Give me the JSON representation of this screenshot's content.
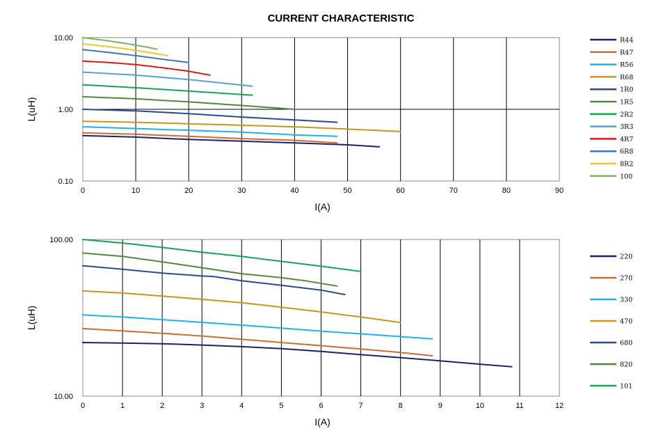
{
  "title": "CURRENT CHARACTERISTIC",
  "chart_data": [
    {
      "type": "line",
      "xlabel": "I(A)",
      "ylabel": "L(uH)",
      "xlim": [
        0,
        90
      ],
      "ylim": [
        0.1,
        10
      ],
      "yscale": "log",
      "xticks": [
        "0",
        "10",
        "20",
        "30",
        "40",
        "50",
        "60",
        "70",
        "80",
        "90"
      ],
      "yticks": [
        "0.10",
        "1.00",
        "10.00"
      ],
      "grid": true,
      "legend_position": "right",
      "series": [
        {
          "name": "R44",
          "color": "#1f1f6b",
          "x": [
            0,
            10,
            20,
            30,
            40,
            50,
            56
          ],
          "y": [
            0.43,
            0.41,
            0.38,
            0.36,
            0.34,
            0.32,
            0.3
          ]
        },
        {
          "name": "R47",
          "color": "#d06a34",
          "x": [
            0,
            10,
            20,
            30,
            40,
            48
          ],
          "y": [
            0.47,
            0.45,
            0.42,
            0.39,
            0.37,
            0.34
          ]
        },
        {
          "name": "R56",
          "color": "#1fb2e6",
          "x": [
            0,
            10,
            20,
            30,
            40,
            48
          ],
          "y": [
            0.57,
            0.54,
            0.51,
            0.48,
            0.44,
            0.42
          ]
        },
        {
          "name": "R68",
          "color": "#c9961a",
          "x": [
            0,
            10,
            20,
            30,
            40,
            50,
            60
          ],
          "y": [
            0.68,
            0.66,
            0.63,
            0.6,
            0.57,
            0.53,
            0.49
          ]
        },
        {
          "name": "1R0",
          "color": "#2b4a8c",
          "x": [
            0,
            10,
            20,
            30,
            40,
            48
          ],
          "y": [
            1.0,
            0.95,
            0.87,
            0.78,
            0.71,
            0.66
          ]
        },
        {
          "name": "1R5",
          "color": "#4f8a3c",
          "x": [
            0,
            10,
            20,
            30,
            40
          ],
          "y": [
            1.5,
            1.4,
            1.27,
            1.13,
            1.0
          ]
        },
        {
          "name": "2R2",
          "color": "#12a84f",
          "x": [
            0,
            10,
            20,
            32
          ],
          "y": [
            2.2,
            2.0,
            1.8,
            1.57
          ]
        },
        {
          "name": "3R3",
          "color": "#5aa0d8",
          "x": [
            0,
            10,
            20,
            32
          ],
          "y": [
            3.3,
            3.0,
            2.6,
            2.1
          ]
        },
        {
          "name": "4R7",
          "color": "#e0161b",
          "x": [
            0,
            5,
            10,
            15,
            20,
            24
          ],
          "y": [
            4.7,
            4.5,
            4.2,
            3.8,
            3.4,
            3.0
          ]
        },
        {
          "name": "6R8",
          "color": "#4472c4",
          "x": [
            0,
            5,
            10,
            15,
            20
          ],
          "y": [
            6.8,
            6.2,
            5.6,
            5.0,
            4.5
          ]
        },
        {
          "name": "8R2",
          "color": "#f5c32c",
          "x": [
            0,
            4,
            8,
            12,
            16
          ],
          "y": [
            8.2,
            7.6,
            7.0,
            6.3,
            5.6
          ]
        },
        {
          "name": "100",
          "color": "#7cb45a",
          "x": [
            0,
            4,
            8,
            12,
            14
          ],
          "y": [
            10.0,
            9.2,
            8.3,
            7.4,
            6.9
          ]
        }
      ]
    },
    {
      "type": "line",
      "xlabel": "I(A)",
      "ylabel": "L(uH)",
      "xlim": [
        0,
        12
      ],
      "ylim": [
        10,
        100
      ],
      "yscale": "log",
      "xticks": [
        "0",
        "1",
        "2",
        "3",
        "4",
        "5",
        "6",
        "7",
        "8",
        "9",
        "10",
        "11",
        "12"
      ],
      "yticks": [
        "10.00",
        "100.00"
      ],
      "grid": true,
      "legend_position": "right",
      "series": [
        {
          "name": "220",
          "color": "#1f1f6b",
          "x": [
            0,
            1,
            2,
            3,
            4,
            5,
            6,
            7,
            8,
            9,
            10,
            10.8
          ],
          "y": [
            22.0,
            21.8,
            21.6,
            21.2,
            20.7,
            20.1,
            19.3,
            18.4,
            17.6,
            16.8,
            16.0,
            15.4
          ]
        },
        {
          "name": "270",
          "color": "#d06a34",
          "x": [
            0,
            1,
            2,
            3,
            4,
            5,
            6,
            7,
            8,
            8.8
          ],
          "y": [
            27.0,
            26.1,
            25.2,
            24.2,
            23.1,
            22.0,
            21.0,
            20.0,
            19.0,
            18.1
          ]
        },
        {
          "name": "330",
          "color": "#1fb2e6",
          "x": [
            0,
            1,
            2,
            3,
            4,
            5,
            6,
            7,
            8,
            8.8
          ],
          "y": [
            33.0,
            32.0,
            30.8,
            29.6,
            28.4,
            27.2,
            26.0,
            25.0,
            24.0,
            23.2
          ]
        },
        {
          "name": "470",
          "color": "#c9961a",
          "x": [
            0,
            1,
            2,
            3,
            4,
            5,
            6,
            7,
            8
          ],
          "y": [
            47.0,
            45.5,
            43.5,
            41.5,
            39.5,
            37.0,
            34.5,
            32.0,
            29.5
          ]
        },
        {
          "name": "680",
          "color": "#2b4a8c",
          "x": [
            0,
            1,
            2,
            3,
            3.3,
            4,
            5,
            6,
            6.6
          ],
          "y": [
            68.0,
            64.5,
            61.0,
            58.5,
            58.0,
            54.5,
            51.0,
            47.5,
            44.5
          ]
        },
        {
          "name": "820",
          "color": "#4f8a3c",
          "x": [
            0,
            1,
            2,
            3,
            4,
            5,
            5.6,
            6.4
          ],
          "y": [
            82.0,
            78.0,
            72.0,
            66.0,
            60.5,
            57.0,
            54.5,
            50.5
          ]
        },
        {
          "name": "101",
          "color": "#12a84f",
          "x": [
            0,
            1,
            2,
            3,
            4,
            5,
            6,
            7
          ],
          "y": [
            100.0,
            95.0,
            89.0,
            83.0,
            78.0,
            72.5,
            67.5,
            62.5
          ]
        }
      ]
    }
  ]
}
